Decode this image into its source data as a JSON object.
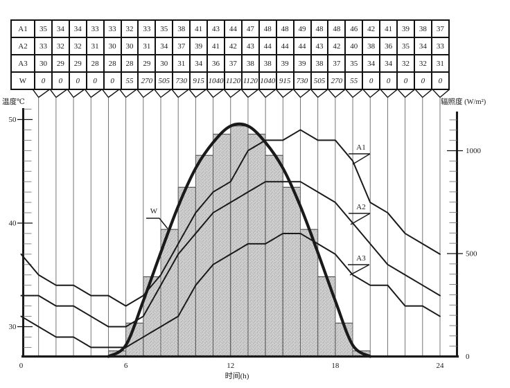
{
  "table": {
    "rows": [
      {
        "label": "A1",
        "values": [
          35,
          34,
          34,
          33,
          33,
          32,
          33,
          35,
          38,
          41,
          43,
          44,
          47,
          48,
          48,
          49,
          48,
          48,
          46,
          42,
          41,
          39,
          38,
          37
        ]
      },
      {
        "label": "A2",
        "values": [
          33,
          32,
          32,
          31,
          30,
          30,
          31,
          34,
          37,
          39,
          41,
          42,
          43,
          44,
          44,
          44,
          43,
          42,
          40,
          38,
          36,
          35,
          34,
          33
        ]
      },
      {
        "label": "A3",
        "values": [
          30,
          29,
          29,
          28,
          28,
          28,
          29,
          30,
          31,
          34,
          36,
          37,
          38,
          38,
          39,
          39,
          38,
          37,
          35,
          34,
          34,
          32,
          32,
          31
        ]
      },
      {
        "label": "W",
        "values": [
          0,
          0,
          0,
          0,
          0,
          55,
          270,
          505,
          730,
          915,
          1040,
          1120,
          1120,
          1040,
          915,
          730,
          505,
          270,
          55,
          0,
          0,
          0,
          0,
          0
        ]
      }
    ]
  },
  "chart_data": {
    "type": "line",
    "x_hours": [
      1,
      2,
      3,
      4,
      5,
      6,
      7,
      8,
      9,
      10,
      11,
      12,
      13,
      14,
      15,
      16,
      17,
      18,
      19,
      20,
      21,
      22,
      23,
      24
    ],
    "series": [
      {
        "name": "A1",
        "axis": "left",
        "unit": "℃",
        "values": [
          35,
          34,
          34,
          33,
          33,
          32,
          33,
          35,
          38,
          41,
          43,
          44,
          47,
          48,
          48,
          49,
          48,
          48,
          46,
          42,
          41,
          39,
          38,
          37
        ]
      },
      {
        "name": "A2",
        "axis": "left",
        "unit": "℃",
        "values": [
          33,
          32,
          32,
          31,
          30,
          30,
          31,
          34,
          37,
          39,
          41,
          42,
          43,
          44,
          44,
          44,
          43,
          42,
          40,
          38,
          36,
          35,
          34,
          33
        ]
      },
      {
        "name": "A3",
        "axis": "left",
        "unit": "℃",
        "values": [
          30,
          29,
          29,
          28,
          28,
          28,
          29,
          30,
          31,
          34,
          36,
          37,
          38,
          38,
          39,
          39,
          38,
          37,
          35,
          34,
          34,
          32,
          32,
          31
        ]
      },
      {
        "name": "W",
        "axis": "right",
        "unit": "W/m²",
        "style": "thick smooth curve over stippled hourly bars",
        "values": [
          0,
          0,
          0,
          0,
          0,
          55,
          270,
          505,
          730,
          915,
          1040,
          1120,
          1120,
          1040,
          915,
          730,
          505,
          270,
          55,
          0,
          0,
          0,
          0,
          0
        ]
      }
    ],
    "axes": {
      "left_label": "温度℃",
      "right_label": "辐照度 (W/m²)",
      "x_label": "时间(h)",
      "x_ticks": [
        0,
        6,
        12,
        18,
        24
      ],
      "left_tick_labels": [
        50,
        40,
        30
      ],
      "left_range": [
        27,
        51
      ],
      "right_tick_labels": [
        1000,
        500,
        0
      ],
      "right_range": [
        0,
        1200
      ],
      "grid": "vertical line per hour, fed by arrows from each table column"
    },
    "curve_labels": [
      "W",
      "A1",
      "A2",
      "A3"
    ],
    "colors": {
      "ink": "#1a1a1a",
      "grid": "#666666",
      "bar_fill": "#d0d0d0",
      "bar_dot": "#8f8f8f"
    }
  }
}
